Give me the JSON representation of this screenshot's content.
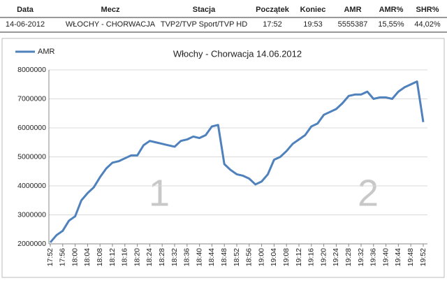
{
  "table": {
    "header": [
      "Data",
      "Mecz",
      "Stacja",
      "Początek",
      "Koniec",
      "AMR",
      "AMR%",
      "SHR%"
    ],
    "rows": [
      [
        "14-06-2012",
        "WŁOCHY - CHORWACJA",
        "TVP2/TVP Sport/TVP HD",
        "17:52",
        "19:53",
        "5555387",
        "15,55%",
        "44,02%"
      ]
    ]
  },
  "chart_data": {
    "type": "line",
    "title": "Włochy - Chorwacja 14.06.2012",
    "categories": [
      "17:52",
      null,
      "17:56",
      null,
      "18:00",
      null,
      "18:04",
      null,
      "18:08",
      null,
      "18:12",
      null,
      "18:16",
      null,
      "18:20",
      null,
      "18:24",
      null,
      "18:28",
      null,
      "18:32",
      null,
      "18:36",
      null,
      "18:40",
      null,
      "18:44",
      null,
      "18:48",
      null,
      "18:52",
      null,
      "18:56",
      null,
      "19:00",
      null,
      "19:04",
      null,
      "19:08",
      null,
      "19:12",
      null,
      "19:16",
      null,
      "19:20",
      null,
      "19:24",
      null,
      "19:28",
      null,
      "19:32",
      null,
      "19:36",
      null,
      "19:40",
      null,
      "19:44",
      null,
      "19:48",
      null,
      "19:52"
    ],
    "series": [
      {
        "name": "AMR",
        "color": "#4f81bd",
        "values": [
          2050000,
          2300000,
          2450000,
          2800000,
          2950000,
          3500000,
          3750000,
          3950000,
          4300000,
          4600000,
          4800000,
          4850000,
          4950000,
          5050000,
          5050000,
          5400000,
          5550000,
          5500000,
          5450000,
          5400000,
          5350000,
          5550000,
          5600000,
          5700000,
          5650000,
          5750000,
          6050000,
          6100000,
          4750000,
          4550000,
          4400000,
          4350000,
          4250000,
          4050000,
          4150000,
          4400000,
          4900000,
          5000000,
          5200000,
          5450000,
          5600000,
          5750000,
          6050000,
          6150000,
          6450000,
          6550000,
          6650000,
          6850000,
          7100000,
          7150000,
          7150000,
          7250000,
          7000000,
          7050000,
          7050000,
          7000000,
          7250000,
          7400000,
          7500000,
          7600000,
          6200000
        ]
      }
    ],
    "ylim": [
      2000000,
      8000000
    ],
    "yticks": [
      2000000,
      3000000,
      4000000,
      5000000,
      6000000,
      7000000,
      8000000
    ],
    "grid": true,
    "legend": "top-left",
    "annotations": [
      "1",
      "2"
    ]
  }
}
